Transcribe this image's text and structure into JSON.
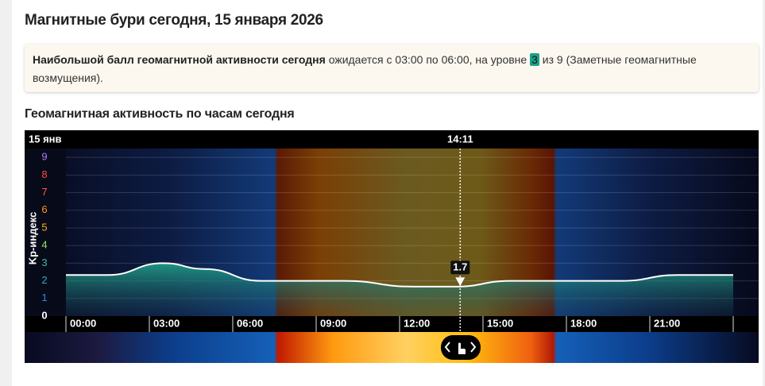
{
  "page_title": "Магнитные бури сегодня, 15 января 2026",
  "notice": {
    "bold": "Наибольшой балл геомагнитной активности сегодня",
    "text1": "ожидается с 03:00 по 06:00, на уровне",
    "level": 3,
    "text2": "из 9 (Заметные геомагнитные возмущения)."
  },
  "section_title": "Геомагнитная активность по часам сегодня",
  "chart_data": {
    "type": "area",
    "date_label": "15 янв",
    "ylabel": "Kp-индекс",
    "x": [
      0,
      1.5,
      3.5,
      5,
      7,
      10,
      12.5,
      14,
      16,
      20,
      22,
      24
    ],
    "values": [
      2.33,
      2.33,
      3,
      2.67,
      2,
      2,
      1.67,
      1.67,
      2,
      2,
      2.33,
      2.33
    ],
    "xlim": [
      0,
      24
    ],
    "ylim": [
      0,
      9.5
    ],
    "xticks": [
      {
        "value": 0,
        "label": "00:00"
      },
      {
        "value": 3,
        "label": "03:00"
      },
      {
        "value": 6,
        "label": "06:00"
      },
      {
        "value": 9,
        "label": "09:00"
      },
      {
        "value": 12,
        "label": "12:00"
      },
      {
        "value": 15,
        "label": "15:00"
      },
      {
        "value": 18,
        "label": "18:00"
      },
      {
        "value": 21,
        "label": "21:00"
      }
    ],
    "yticks": [
      0,
      1,
      2,
      3,
      4,
      5,
      6,
      7,
      8,
      9
    ],
    "ytick_colors": [
      "#ffffff",
      "#2f8fd0",
      "#3aa6c0",
      "#3fb8a0",
      "#9be36b",
      "#ffb020",
      "#ff9a1a",
      "#ff5a4a",
      "#ff4a4a",
      "#b07aff"
    ],
    "color": "#ffffff",
    "marker": {
      "x": {
        "value": 14.18,
        "label": "14:11"
      },
      "value": 1.7
    }
  }
}
